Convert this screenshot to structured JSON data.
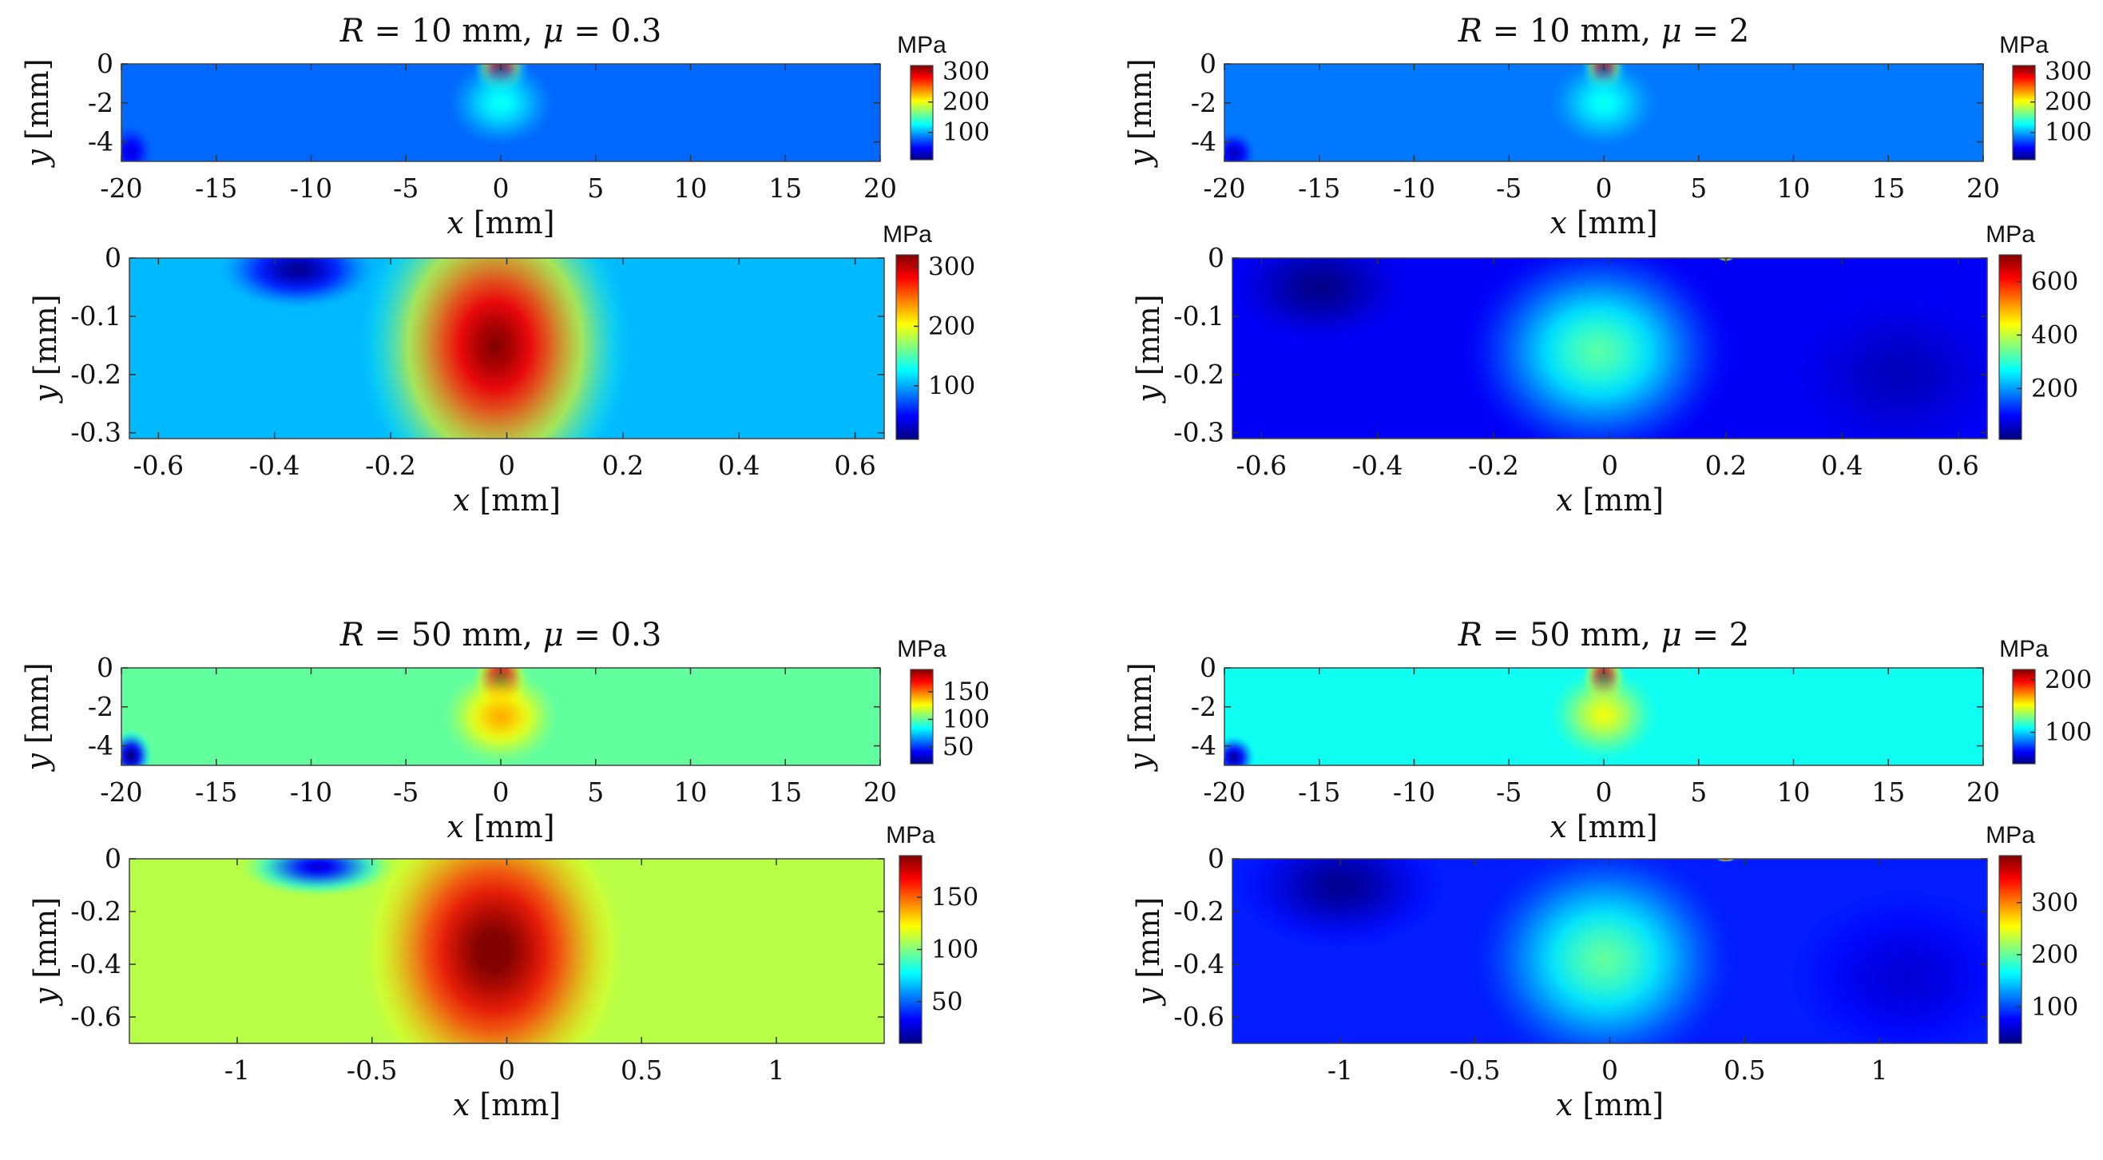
{
  "colormap": [
    "#000080",
    "#0000ff",
    "#0080ff",
    "#00ffff",
    "#80ff80",
    "#ffff00",
    "#ff8000",
    "#ff0000",
    "#800000"
  ],
  "chart_data": [
    {
      "type": "heatmap",
      "title": "R = 10 mm, μ = 0.3",
      "title_parts": [
        "R",
        " = 10 mm, ",
        "μ",
        " = 0.3"
      ],
      "xlabel_var": "x",
      "xlabel_unit": "[mm]",
      "ylabel_var": "y",
      "ylabel_unit": "[mm]",
      "xlim": [
        -20,
        20
      ],
      "ylim": [
        -5,
        0
      ],
      "xticks": [
        "-20",
        "-15",
        "-10",
        "-5",
        "0",
        "5",
        "10",
        "15",
        "20"
      ],
      "yticks": [
        "0",
        "-2",
        "-4"
      ],
      "colorbar": {
        "unit": "MPa",
        "min": 10,
        "max": 320,
        "ticks": [
          "100",
          "200",
          "300"
        ]
      },
      "background_value": 80,
      "hotspots": [
        {
          "x": 0,
          "y": -0.3,
          "value": 320,
          "sx": 1.5,
          "sy": 1.6
        },
        {
          "x": 0,
          "y": -2.0,
          "value": 130,
          "sx": 3.0,
          "sy": 2.4
        }
      ],
      "coldspots": [
        {
          "x": -19.5,
          "y": -4.5,
          "value": 40,
          "sx": 1.2,
          "sy": 1.4
        }
      ]
    },
    {
      "type": "heatmap",
      "xlabel_var": "x",
      "xlabel_unit": "[mm]",
      "ylabel_var": "y",
      "ylabel_unit": "[mm]",
      "xlim": [
        -0.65,
        0.65
      ],
      "ylim": [
        -0.31,
        0
      ],
      "xticks": [
        "-0.6",
        "-0.4",
        "-0.2",
        "0",
        "0.2",
        "0.4",
        "0.6"
      ],
      "yticks": [
        "0",
        "-0.1",
        "-0.2",
        "-0.3"
      ],
      "colorbar": {
        "unit": "MPa",
        "min": 10,
        "max": 320,
        "ticks": [
          "100",
          "200",
          "300"
        ]
      },
      "background_value": 105,
      "hotspots": [
        {
          "x": -0.02,
          "y": -0.15,
          "value": 320,
          "sx": 0.24,
          "sy": 0.3
        }
      ],
      "coldspots": [
        {
          "x": -0.36,
          "y": -0.02,
          "value": 15,
          "sx": 0.14,
          "sy": 0.07
        }
      ]
    },
    {
      "type": "heatmap",
      "title": "R = 10 mm, μ = 2",
      "title_parts": [
        "R",
        " = 10 mm, ",
        "μ",
        " = 2"
      ],
      "xlabel_var": "x",
      "xlabel_unit": "[mm]",
      "ylabel_var": "y",
      "ylabel_unit": "[mm]",
      "xlim": [
        -20,
        20
      ],
      "ylim": [
        -5,
        0
      ],
      "xticks": [
        "-20",
        "-15",
        "-10",
        "-5",
        "0",
        "5",
        "10",
        "15",
        "20"
      ],
      "yticks": [
        "0",
        "-2",
        "-4"
      ],
      "colorbar": {
        "unit": "MPa",
        "min": 10,
        "max": 320,
        "ticks": [
          "100",
          "200",
          "300"
        ]
      },
      "background_value": 85,
      "hotspots": [
        {
          "x": 0,
          "y": -0.3,
          "value": 320,
          "sx": 1.2,
          "sy": 1.4
        },
        {
          "x": 0,
          "y": -2.0,
          "value": 130,
          "sx": 3.0,
          "sy": 2.4
        }
      ],
      "coldspots": [
        {
          "x": -19.5,
          "y": -4.6,
          "value": 30,
          "sx": 1.2,
          "sy": 1.2
        }
      ]
    },
    {
      "type": "heatmap",
      "xlabel_var": "x",
      "xlabel_unit": "[mm]",
      "ylabel_var": "y",
      "ylabel_unit": "[mm]",
      "xlim": [
        -0.65,
        0.65
      ],
      "ylim": [
        -0.31,
        0
      ],
      "xticks": [
        "-0.6",
        "-0.4",
        "-0.2",
        "0",
        "0.2",
        "0.4",
        "0.6"
      ],
      "yticks": [
        "0",
        "-0.1",
        "-0.2",
        "-0.3"
      ],
      "colorbar": {
        "unit": "MPa",
        "min": 10,
        "max": 700,
        "ticks": [
          "200",
          "400",
          "600"
        ]
      },
      "background_value": 90,
      "hotspots": [
        {
          "x": -0.02,
          "y": -0.16,
          "value": 330,
          "sx": 0.24,
          "sy": 0.2
        },
        {
          "x": 0.2,
          "y": 0,
          "value": 700,
          "sx": 0.015,
          "sy": 0.006
        }
      ],
      "coldspots": [
        {
          "x": -0.5,
          "y": -0.05,
          "value": 15,
          "sx": 0.16,
          "sy": 0.1
        },
        {
          "x": 0.5,
          "y": -0.2,
          "value": 50,
          "sx": 0.2,
          "sy": 0.15
        }
      ]
    },
    {
      "type": "heatmap",
      "title": "R = 50 mm, μ = 0.3",
      "title_parts": [
        "R",
        " = 50 mm, ",
        "μ",
        " = 0.3"
      ],
      "xlabel_var": "x",
      "xlabel_unit": "[mm]",
      "ylabel_var": "y",
      "ylabel_unit": "[mm]",
      "xlim": [
        -20,
        20
      ],
      "ylim": [
        -5,
        0
      ],
      "xticks": [
        "-20",
        "-15",
        "-10",
        "-5",
        "0",
        "5",
        "10",
        "15",
        "20"
      ],
      "yticks": [
        "0",
        "-2",
        "-4"
      ],
      "colorbar": {
        "unit": "MPa",
        "min": 20,
        "max": 190,
        "ticks": [
          "50",
          "100",
          "150"
        ]
      },
      "background_value": 100,
      "hotspots": [
        {
          "x": 0,
          "y": -0.7,
          "value": 195,
          "sx": 1.5,
          "sy": 1.8
        },
        {
          "x": 0,
          "y": -2.5,
          "value": 140,
          "sx": 3.2,
          "sy": 2.6
        }
      ],
      "coldspots": [
        {
          "x": -19.5,
          "y": -4.5,
          "value": 20,
          "sx": 1.2,
          "sy": 1.4
        }
      ]
    },
    {
      "type": "heatmap",
      "xlabel_var": "x",
      "xlabel_unit": "[mm]",
      "ylabel_var": "y",
      "ylabel_unit": "[mm]",
      "xlim": [
        -1.4,
        1.4
      ],
      "ylim": [
        -0.7,
        0
      ],
      "xticks": [
        "-1",
        "-0.5",
        "0",
        "0.5",
        "1"
      ],
      "yticks": [
        "0",
        "-0.2",
        "-0.4",
        "-0.6"
      ],
      "colorbar": {
        "unit": "MPa",
        "min": 10,
        "max": 190,
        "ticks": [
          "50",
          "100",
          "150"
        ]
      },
      "background_value": 110,
      "hotspots": [
        {
          "x": -0.05,
          "y": -0.35,
          "value": 195,
          "sx": 0.5,
          "sy": 0.6
        }
      ],
      "coldspots": [
        {
          "x": -0.7,
          "y": -0.03,
          "value": 25,
          "sx": 0.3,
          "sy": 0.12
        }
      ]
    },
    {
      "type": "heatmap",
      "title": "R = 50 mm, μ = 2",
      "title_parts": [
        "R",
        " = 50 mm, ",
        "μ",
        " = 2"
      ],
      "xlabel_var": "x",
      "xlabel_unit": "[mm]",
      "ylabel_var": "y",
      "ylabel_unit": "[mm]",
      "xlim": [
        -20,
        20
      ],
      "ylim": [
        -5,
        0
      ],
      "xticks": [
        "-20",
        "-15",
        "-10",
        "-5",
        "0",
        "5",
        "10",
        "15",
        "20"
      ],
      "yticks": [
        "0",
        "-2",
        "-4"
      ],
      "colorbar": {
        "unit": "MPa",
        "min": 40,
        "max": 220,
        "ticks": [
          "100",
          "200"
        ]
      },
      "background_value": 110,
      "hotspots": [
        {
          "x": 0,
          "y": -0.6,
          "value": 225,
          "sx": 1.2,
          "sy": 1.5
        },
        {
          "x": 0,
          "y": -2.4,
          "value": 150,
          "sx": 3.0,
          "sy": 2.5
        }
      ],
      "coldspots": [
        {
          "x": -19.5,
          "y": -4.6,
          "value": 45,
          "sx": 1.2,
          "sy": 1.2
        }
      ]
    },
    {
      "type": "heatmap",
      "xlabel_var": "x",
      "xlabel_unit": "[mm]",
      "ylabel_var": "y",
      "ylabel_unit": "[mm]",
      "xlim": [
        -1.4,
        1.4
      ],
      "ylim": [
        -0.7,
        0
      ],
      "xticks": [
        "-1",
        "-0.5",
        "0",
        "0.5",
        "1"
      ],
      "yticks": [
        "0",
        "-0.2",
        "-0.4",
        "-0.6"
      ],
      "colorbar": {
        "unit": "MPa",
        "min": 30,
        "max": 390,
        "ticks": [
          "100",
          "200",
          "300"
        ]
      },
      "background_value": 85,
      "hotspots": [
        {
          "x": -0.02,
          "y": -0.38,
          "value": 200,
          "sx": 0.5,
          "sy": 0.45
        },
        {
          "x": 0.43,
          "y": 0,
          "value": 390,
          "sx": 0.04,
          "sy": 0.012
        }
      ],
      "coldspots": [
        {
          "x": -1.0,
          "y": -0.1,
          "value": 35,
          "sx": 0.4,
          "sy": 0.25
        },
        {
          "x": 1.1,
          "y": -0.45,
          "value": 60,
          "sx": 0.45,
          "sy": 0.35
        }
      ]
    }
  ]
}
